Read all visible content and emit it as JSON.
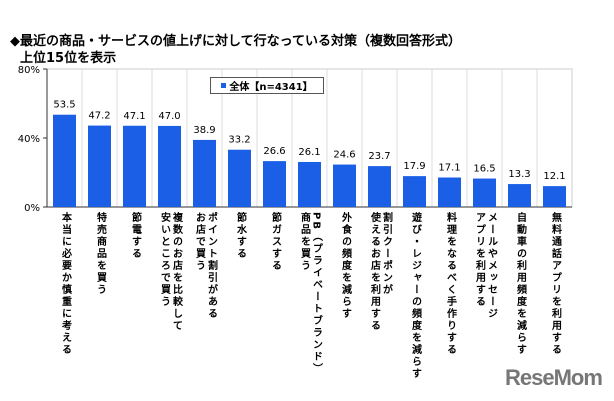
{
  "chart_data": {
    "type": "bar",
    "title": "◆最近の商品・サービスの値上げに対して行なっている対策（複数回答形式）",
    "subtitle": "上位15位を表示",
    "ylim": [
      0,
      80
    ],
    "yticks": [
      "0%",
      "40%",
      "80%"
    ],
    "grid": true,
    "legend_position": "top-center",
    "color": "#1a5fe6",
    "series": [
      {
        "name": "全体【n=4341】",
        "values": [
          53.5,
          47.2,
          47.1,
          47.0,
          38.9,
          33.2,
          26.6,
          26.1,
          24.6,
          23.7,
          17.9,
          17.1,
          16.5,
          13.3,
          12.1
        ]
      }
    ],
    "value_labels": [
      "53.5",
      "47.2",
      "47.1",
      "47.0",
      "38.9",
      "33.2",
      "26.6",
      "26.1",
      "24.6",
      "23.7",
      "17.9",
      "17.1",
      "16.5",
      "13.3",
      "12.1"
    ],
    "categories": [
      [
        "本当に必要か慎重に考える"
      ],
      [
        "特売商品を買う"
      ],
      [
        "節電する"
      ],
      [
        "複数のお店を比較して",
        "安いところで買う"
      ],
      [
        "ポイント割引がある",
        "お店で買う"
      ],
      [
        "節水する"
      ],
      [
        "節ガスする"
      ],
      [
        "PB（プライベートブランド）",
        "商品を買う"
      ],
      [
        "外食の頻度を減らす"
      ],
      [
        "割引クーポンが",
        "使えるお店を利用する"
      ],
      [
        "遊び・レジャーの頻度を減らす"
      ],
      [
        "料理をなるべく手作りする"
      ],
      [
        "メールやメッセージ",
        "アプリを利用する"
      ],
      [
        "自動車の利用頻度を減らす"
      ],
      [
        "無料通話アプリを利用する"
      ]
    ]
  },
  "watermark": "ReseMom"
}
